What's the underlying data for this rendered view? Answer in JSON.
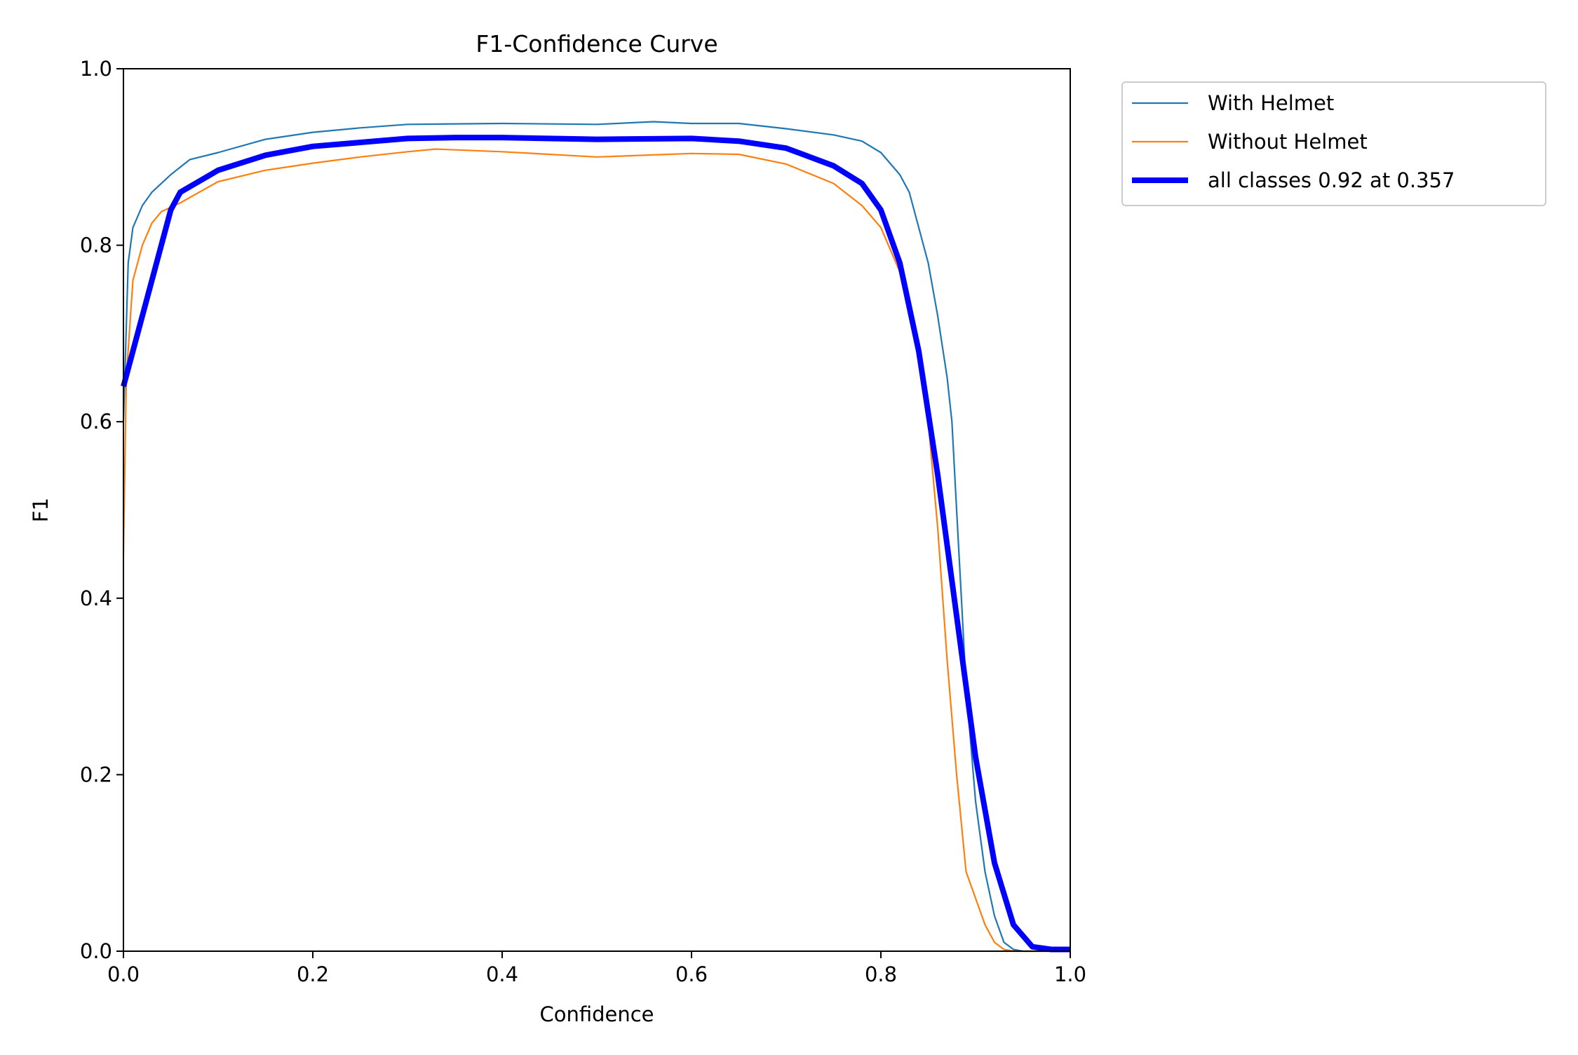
{
  "chart_data": {
    "type": "line",
    "title": "F1-Confidence Curve",
    "xlabel": "Confidence",
    "ylabel": "F1",
    "xlim": [
      0,
      1
    ],
    "ylim": [
      0,
      1
    ],
    "xticks": [
      "0.0",
      "0.2",
      "0.4",
      "0.6",
      "0.8",
      "1.0"
    ],
    "yticks": [
      "0.0",
      "0.2",
      "0.4",
      "0.6",
      "0.8",
      "1.0"
    ],
    "grid": false,
    "legend_placement": "outside-top-right",
    "series": [
      {
        "name": "With Helmet",
        "color": "#1f77b4",
        "width": "thin",
        "x": [
          0,
          0.005,
          0.01,
          0.02,
          0.03,
          0.05,
          0.07,
          0.1,
          0.15,
          0.2,
          0.25,
          0.3,
          0.4,
          0.5,
          0.56,
          0.6,
          0.65,
          0.7,
          0.75,
          0.78,
          0.8,
          0.82,
          0.83,
          0.84,
          0.85,
          0.86,
          0.87,
          0.875,
          0.88,
          0.885,
          0.89,
          0.9,
          0.91,
          0.92,
          0.93,
          0.94,
          0.95,
          1.0
        ],
        "y": [
          0.6,
          0.78,
          0.82,
          0.845,
          0.86,
          0.88,
          0.897,
          0.905,
          0.92,
          0.928,
          0.933,
          0.937,
          0.938,
          0.937,
          0.94,
          0.938,
          0.938,
          0.932,
          0.925,
          0.918,
          0.905,
          0.88,
          0.86,
          0.82,
          0.78,
          0.72,
          0.65,
          0.6,
          0.5,
          0.4,
          0.3,
          0.17,
          0.09,
          0.04,
          0.01,
          0.002,
          0,
          0
        ]
      },
      {
        "name": "Without Helmet",
        "color": "#ff7f0e",
        "width": "thin",
        "x": [
          0,
          0.003,
          0.01,
          0.02,
          0.03,
          0.04,
          0.06,
          0.08,
          0.1,
          0.15,
          0.2,
          0.25,
          0.3,
          0.33,
          0.4,
          0.5,
          0.6,
          0.65,
          0.7,
          0.75,
          0.78,
          0.8,
          0.82,
          0.84,
          0.85,
          0.86,
          0.87,
          0.88,
          0.89,
          0.9,
          0.91,
          0.92,
          0.93,
          0.94,
          1.0
        ],
        "y": [
          0.45,
          0.65,
          0.76,
          0.8,
          0.825,
          0.838,
          0.848,
          0.86,
          0.872,
          0.885,
          0.893,
          0.9,
          0.906,
          0.909,
          0.906,
          0.9,
          0.904,
          0.903,
          0.892,
          0.87,
          0.845,
          0.82,
          0.77,
          0.68,
          0.6,
          0.48,
          0.33,
          0.2,
          0.09,
          0.06,
          0.03,
          0.01,
          0.002,
          0,
          0
        ]
      },
      {
        "name": "all classes 0.92 at 0.357",
        "color": "#0000ff",
        "width": "thick",
        "x": [
          0,
          0.05,
          0.06,
          0.1,
          0.15,
          0.2,
          0.3,
          0.35,
          0.4,
          0.5,
          0.6,
          0.65,
          0.7,
          0.75,
          0.78,
          0.8,
          0.82,
          0.84,
          0.86,
          0.88,
          0.9,
          0.92,
          0.94,
          0.96,
          0.98,
          1.0
        ],
        "y": [
          0.64,
          0.84,
          0.86,
          0.885,
          0.902,
          0.912,
          0.921,
          0.922,
          0.922,
          0.92,
          0.921,
          0.918,
          0.91,
          0.89,
          0.87,
          0.84,
          0.78,
          0.68,
          0.54,
          0.38,
          0.22,
          0.1,
          0.03,
          0.005,
          0.002,
          0.002
        ]
      }
    ]
  }
}
